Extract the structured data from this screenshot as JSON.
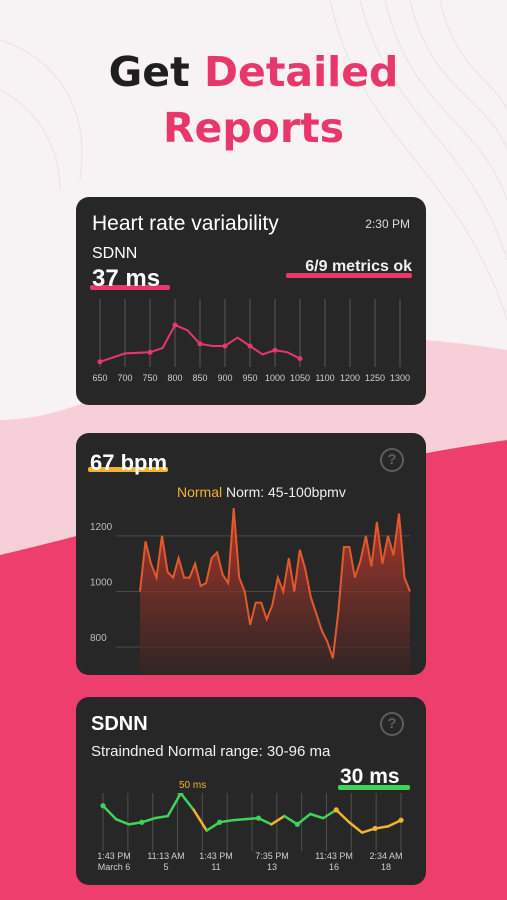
{
  "headline": {
    "part1": "Get",
    "part2": "Detailed",
    "part3": "Reports"
  },
  "colors": {
    "accent": "#e8376a",
    "card": "#272727",
    "yellow": "#f2b233",
    "green": "#3fd35a",
    "orange": "#e2592e"
  },
  "hrv_card": {
    "title": "Heart rate variability",
    "time": "2:30 PM",
    "metric_label": "SDNN",
    "metric_value": "37 ms",
    "status": "6/9 metrics ok",
    "chart_data": {
      "type": "line",
      "x_ticks": [
        "650",
        "700",
        "750",
        "800",
        "850",
        "900",
        "950",
        "1000",
        "1050",
        "1100",
        "1200",
        "1250",
        "1300"
      ],
      "points": [
        [
          650,
          5
        ],
        [
          700,
          13
        ],
        [
          750,
          14
        ],
        [
          775,
          18
        ],
        [
          800,
          40
        ],
        [
          825,
          35
        ],
        [
          850,
          22
        ],
        [
          875,
          20
        ],
        [
          900,
          20
        ],
        [
          925,
          28
        ],
        [
          950,
          20
        ],
        [
          975,
          12
        ],
        [
          1000,
          16
        ],
        [
          1025,
          14
        ],
        [
          1050,
          8
        ]
      ],
      "ylim": [
        0,
        60
      ],
      "grid": true
    }
  },
  "bpm_card": {
    "value": "67 bpm",
    "help": "?",
    "status_label": "Normal",
    "norm_text": "Norm: 45-100bpmv",
    "chart_data": {
      "type": "area",
      "y_ticks": [
        "1200",
        "1000",
        "800"
      ],
      "ylim": [
        700,
        1300
      ],
      "values": [
        1000,
        1180,
        1100,
        1050,
        1200,
        1070,
        1050,
        1120,
        1050,
        1050,
        1100,
        1020,
        1030,
        1120,
        1140,
        1060,
        1030,
        1300,
        1050,
        1000,
        880,
        960,
        960,
        900,
        950,
        1050,
        1000,
        1120,
        1000,
        1150,
        1080,
        980,
        920,
        860,
        820,
        760,
        930,
        1160,
        1160,
        1050,
        1110,
        1200,
        1090,
        1250,
        1100,
        1200,
        1130,
        1280,
        1050,
        1000
      ]
    }
  },
  "sdnn_card": {
    "title": "SDNN",
    "help": "?",
    "range_text": "Straindned Normal range: 30-96 ma",
    "value": "30 ms",
    "peak_label": "50 ms",
    "chart_data": {
      "type": "line",
      "x_labels": [
        {
          "time": "1:43 PM",
          "date": "March 6"
        },
        {
          "time": "11:13 AM",
          "date": "5"
        },
        {
          "time": "1:43 PM",
          "date": "11"
        },
        {
          "time": "7:35 PM",
          "date": "13"
        },
        {
          "time": "11:43 PM",
          "date": "16"
        },
        {
          "time": "2:34 AM",
          "date": "18"
        }
      ],
      "values": [
        38,
        25,
        20,
        22,
        26,
        28,
        50,
        34,
        14,
        22,
        24,
        25,
        26,
        20,
        28,
        20,
        30,
        26,
        34,
        22,
        12,
        16,
        18,
        24
      ],
      "segment_status": [
        "normal",
        "normal",
        "normal",
        "normal",
        "normal",
        "normal",
        "normal",
        "low",
        "normal",
        "normal",
        "normal",
        "normal",
        "normal",
        "low",
        "normal",
        "normal",
        "normal",
        "normal",
        "low",
        "low",
        "low",
        "low",
        "low"
      ],
      "ylim": [
        0,
        60
      ]
    }
  }
}
